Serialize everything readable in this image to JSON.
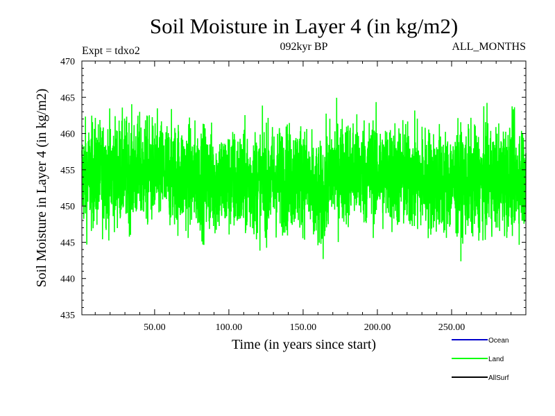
{
  "chart_data": {
    "type": "line",
    "title": "Soil Moisture in Layer 4 (in kg/m2)",
    "subtitle_left": "Expt = tdxo2",
    "subtitle_center": "092kyr BP",
    "subtitle_right": "ALL_MONTHS",
    "xlabel": "Time (in years since start)",
    "ylabel": "Soil Moisture in Layer 4 (in kg/m2)",
    "xlim": [
      1,
      300
    ],
    "ylim": [
      435,
      470
    ],
    "xticks": [
      50,
      100,
      150,
      200,
      250
    ],
    "xtick_labels": [
      "50.00",
      "100.00",
      "150.00",
      "200.00",
      "250.00"
    ],
    "yticks": [
      435,
      440,
      445,
      450,
      455,
      460,
      465,
      470
    ],
    "ytick_labels": [
      "435",
      "440",
      "445",
      "450",
      "455",
      "460",
      "465",
      "470"
    ],
    "grid": false,
    "legend_placement": "bottom-right",
    "series": [
      {
        "name": "Land",
        "color": "#00ff00",
        "summary": {
          "mean": 454,
          "min": 440,
          "max": 466.5,
          "samples_per_year": 12,
          "dip_near_year": 160
        }
      }
    ],
    "legend": [
      {
        "name": "Ocean",
        "color": "#0000cc"
      },
      {
        "name": "Land",
        "color": "#00ff00"
      },
      {
        "name": "AllSurf",
        "color": "#000000"
      }
    ]
  }
}
